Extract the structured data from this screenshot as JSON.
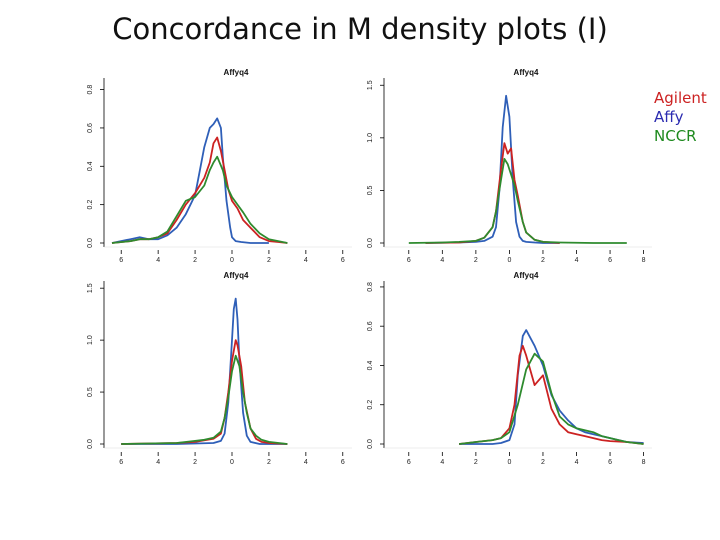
{
  "slide": {
    "title": "Concordance in M density plots (I)"
  },
  "legend": [
    {
      "label": "Agilent",
      "color": "#cc2222"
    },
    {
      "label": "Affy",
      "color": "#2b2bb0"
    },
    {
      "label": "NCCR",
      "color": "#1e8a1e"
    }
  ],
  "chart_data": [
    {
      "type": "line",
      "title": "Affyq4",
      "x_ticks": [
        -6,
        -4,
        -2,
        0,
        2,
        4,
        6
      ],
      "y_ticks": [
        0.0,
        0.2,
        0.4,
        0.6,
        0.8
      ],
      "xlim": [
        -6.5,
        6.5
      ],
      "ylim": [
        0,
        0.85
      ],
      "series": [
        {
          "name": "Affy",
          "color": "#2f5fb8",
          "x": [
            -6.5,
            -5.5,
            -5,
            -4.5,
            -4,
            -3.5,
            -3,
            -2.5,
            -2,
            -1.8,
            -1.5,
            -1.2,
            -1,
            -0.8,
            -0.6,
            -0.5,
            -0.3,
            -0.1,
            0,
            0.2,
            0.5,
            1,
            1.5,
            2
          ],
          "y": [
            0,
            0.02,
            0.03,
            0.02,
            0.02,
            0.04,
            0.08,
            0.15,
            0.25,
            0.35,
            0.5,
            0.6,
            0.62,
            0.65,
            0.6,
            0.45,
            0.22,
            0.08,
            0.03,
            0.01,
            0.005,
            0,
            0,
            0
          ]
        },
        {
          "name": "Agilent",
          "color": "#cc2222",
          "x": [
            -6.5,
            -5.5,
            -5,
            -4.5,
            -4,
            -3.5,
            -3,
            -2.5,
            -2,
            -1.5,
            -1.2,
            -1,
            -0.8,
            -0.6,
            -0.4,
            -0.2,
            0,
            0.3,
            0.6,
            1,
            1.5,
            2,
            2.5,
            3
          ],
          "y": [
            0,
            0.01,
            0.02,
            0.02,
            0.03,
            0.05,
            0.12,
            0.2,
            0.26,
            0.34,
            0.42,
            0.52,
            0.55,
            0.48,
            0.38,
            0.28,
            0.22,
            0.18,
            0.12,
            0.08,
            0.03,
            0.01,
            0.005,
            0
          ]
        },
        {
          "name": "NCCR",
          "color": "#2e8b2e",
          "x": [
            -6.5,
            -5.5,
            -5,
            -4.5,
            -4,
            -3.5,
            -3,
            -2.5,
            -2,
            -1.5,
            -1.2,
            -1,
            -0.8,
            -0.5,
            -0.3,
            0,
            0.3,
            0.6,
            1,
            1.5,
            2,
            2.5,
            3
          ],
          "y": [
            0,
            0.01,
            0.02,
            0.02,
            0.03,
            0.06,
            0.14,
            0.22,
            0.24,
            0.3,
            0.38,
            0.42,
            0.45,
            0.38,
            0.3,
            0.24,
            0.2,
            0.16,
            0.1,
            0.05,
            0.02,
            0.01,
            0
          ]
        }
      ]
    },
    {
      "type": "line",
      "title": "Affyq4",
      "x_ticks": [
        -6,
        -4,
        -2,
        0,
        2,
        4,
        6,
        8
      ],
      "y_ticks": [
        0.0,
        0.5,
        1.0,
        1.5
      ],
      "xlim": [
        -7,
        8.5
      ],
      "ylim": [
        0,
        1.55
      ],
      "series": [
        {
          "name": "Affy",
          "color": "#2f5fb8",
          "x": [
            -5,
            -3,
            -2,
            -1.5,
            -1,
            -0.8,
            -0.6,
            -0.4,
            -0.2,
            0,
            0.2,
            0.4,
            0.6,
            0.8,
            1,
            1.5,
            2,
            3
          ],
          "y": [
            0,
            0.005,
            0.01,
            0.02,
            0.06,
            0.15,
            0.5,
            1.1,
            1.4,
            1.2,
            0.6,
            0.2,
            0.06,
            0.02,
            0.01,
            0.005,
            0,
            0
          ]
        },
        {
          "name": "Agilent",
          "color": "#cc2222",
          "x": [
            -5,
            -3,
            -2,
            -1.5,
            -1,
            -0.8,
            -0.5,
            -0.3,
            -0.1,
            0.1,
            0.3,
            0.5,
            0.8,
            1,
            1.5,
            2,
            3
          ],
          "y": [
            0,
            0.005,
            0.02,
            0.05,
            0.15,
            0.3,
            0.7,
            0.95,
            0.85,
            0.9,
            0.6,
            0.45,
            0.2,
            0.1,
            0.03,
            0.01,
            0
          ]
        },
        {
          "name": "NCCR",
          "color": "#2e8b2e",
          "x": [
            -6,
            -4,
            -3,
            -2,
            -1.5,
            -1,
            -0.8,
            -0.5,
            -0.3,
            -0.1,
            0.1,
            0.3,
            0.5,
            0.8,
            1,
            1.5,
            2,
            3,
            5,
            7
          ],
          "y": [
            0,
            0.005,
            0.01,
            0.02,
            0.05,
            0.15,
            0.3,
            0.6,
            0.8,
            0.75,
            0.65,
            0.55,
            0.4,
            0.2,
            0.1,
            0.03,
            0.01,
            0.005,
            0,
            0
          ]
        }
      ]
    },
    {
      "type": "line",
      "title": "Affyq4",
      "x_ticks": [
        -6,
        -4,
        -2,
        0,
        2,
        4,
        6
      ],
      "y_ticks": [
        0.0,
        0.5,
        1.0,
        1.5
      ],
      "xlim": [
        -6.5,
        6.5
      ],
      "ylim": [
        0,
        1.55
      ],
      "series": [
        {
          "name": "Affy",
          "color": "#2f5fb8",
          "x": [
            -6,
            -3,
            -1,
            -0.6,
            -0.4,
            -0.2,
            0,
            0.1,
            0.2,
            0.3,
            0.4,
            0.6,
            0.8,
            1,
            1.5,
            3
          ],
          "y": [
            0,
            0,
            0.01,
            0.03,
            0.1,
            0.4,
            1.0,
            1.3,
            1.4,
            1.2,
            0.8,
            0.3,
            0.08,
            0.02,
            0,
            0
          ]
        },
        {
          "name": "Agilent",
          "color": "#cc2222",
          "x": [
            -6,
            -3,
            -2,
            -1,
            -0.6,
            -0.4,
            -0.2,
            0,
            0.2,
            0.3,
            0.5,
            0.7,
            1,
            1.3,
            1.6,
            2,
            3
          ],
          "y": [
            0,
            0.01,
            0.02,
            0.05,
            0.1,
            0.25,
            0.5,
            0.8,
            1.0,
            0.95,
            0.75,
            0.4,
            0.15,
            0.05,
            0.02,
            0.01,
            0
          ]
        },
        {
          "name": "NCCR",
          "color": "#2e8b2e",
          "x": [
            -6,
            -3,
            -2,
            -1.5,
            -1,
            -0.6,
            -0.4,
            -0.2,
            0,
            0.2,
            0.4,
            0.6,
            0.8,
            1,
            1.3,
            1.6,
            2,
            3
          ],
          "y": [
            0,
            0.01,
            0.03,
            0.04,
            0.06,
            0.12,
            0.25,
            0.45,
            0.7,
            0.85,
            0.75,
            0.5,
            0.3,
            0.15,
            0.08,
            0.04,
            0.02,
            0
          ]
        }
      ]
    },
    {
      "type": "line",
      "title": "Affyq4",
      "x_ticks": [
        -6,
        -4,
        -2,
        0,
        2,
        4,
        6,
        8
      ],
      "y_ticks": [
        0.0,
        0.2,
        0.4,
        0.6,
        0.8
      ],
      "xlim": [
        -7,
        8.5
      ],
      "ylim": [
        0,
        0.82
      ],
      "series": [
        {
          "name": "Affy",
          "color": "#2f5fb8",
          "x": [
            -3,
            -1,
            -0.5,
            0,
            0.3,
            0.5,
            0.8,
            1,
            1.5,
            2,
            2.5,
            3,
            3.5,
            4,
            4.5,
            5,
            5.5,
            6,
            6.5,
            7,
            8
          ],
          "y": [
            0,
            0,
            0.005,
            0.02,
            0.1,
            0.35,
            0.55,
            0.58,
            0.5,
            0.4,
            0.25,
            0.17,
            0.12,
            0.08,
            0.06,
            0.05,
            0.04,
            0.03,
            0.02,
            0.01,
            0.005
          ]
        },
        {
          "name": "Agilent",
          "color": "#cc2222",
          "x": [
            -3,
            -2,
            -1,
            -0.5,
            0,
            0.3,
            0.6,
            0.8,
            1,
            1.5,
            2,
            2.5,
            3,
            3.5,
            4,
            4.5,
            5,
            5.5,
            6,
            7,
            8
          ],
          "y": [
            0,
            0.01,
            0.02,
            0.03,
            0.08,
            0.2,
            0.45,
            0.5,
            0.45,
            0.3,
            0.35,
            0.18,
            0.1,
            0.06,
            0.05,
            0.04,
            0.03,
            0.02,
            0.015,
            0.01,
            0
          ]
        },
        {
          "name": "NCCR",
          "color": "#2e8b2e",
          "x": [
            -3,
            -2,
            -1,
            -0.5,
            0,
            0.5,
            1,
            1.5,
            2,
            2.5,
            3,
            3.5,
            4,
            4.5,
            5,
            5.5,
            6,
            6.5,
            7,
            8
          ],
          "y": [
            0,
            0.01,
            0.02,
            0.03,
            0.06,
            0.2,
            0.38,
            0.46,
            0.42,
            0.26,
            0.14,
            0.1,
            0.08,
            0.07,
            0.06,
            0.04,
            0.03,
            0.02,
            0.01,
            0
          ]
        }
      ]
    }
  ]
}
